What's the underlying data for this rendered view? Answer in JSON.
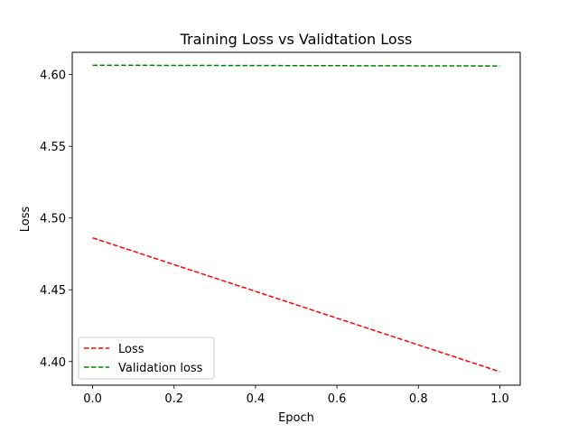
{
  "chart_data": {
    "type": "line",
    "title": "Training Loss vs Validtation Loss",
    "xlabel": "Epoch",
    "ylabel": "Loss",
    "xlim": [
      -0.05,
      1.05
    ],
    "ylim": [
      4.3835,
      4.6155
    ],
    "xticks": [
      "0.0",
      "0.2",
      "0.4",
      "0.6",
      "0.8",
      "1.0"
    ],
    "yticks": [
      "4.40",
      "4.45",
      "4.50",
      "4.55",
      "4.60"
    ],
    "grid": false,
    "legend_position": "lower-left",
    "x": [
      0,
      1
    ],
    "series": [
      {
        "name": "Loss",
        "values": [
          4.4862,
          4.3929
        ],
        "color": "#ff0000",
        "linestyle": "dashed"
      },
      {
        "name": "Validation loss",
        "values": [
          4.6065,
          4.606
        ],
        "color": "#008000",
        "linestyle": "dashed"
      }
    ]
  }
}
